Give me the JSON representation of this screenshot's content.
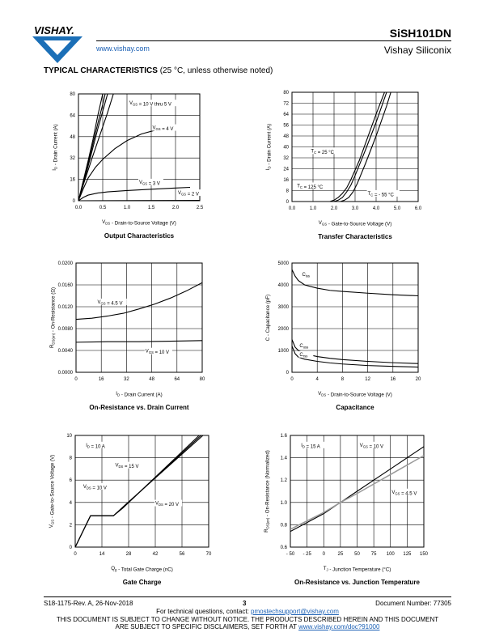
{
  "header": {
    "logo_text": "VISHAY.",
    "url": "www.vishay.com",
    "part_number": "SiSH101DN",
    "company": "Vishay Siliconix"
  },
  "section": {
    "title": "TYPICAL CHARACTERISTICS",
    "subtitle": " (25 °C, unless otherwise noted)"
  },
  "footer": {
    "revision": "S18-1175-Rev. A, 26-Nov-2018",
    "page": "3",
    "doc_number": "Document Number: 77305",
    "questions_prefix": "For technical questions, contact: ",
    "questions_email": "pmostechsupport@vishay.com",
    "disclaimer_line1": "THIS DOCUMENT IS SUBJECT TO CHANGE WITHOUT NOTICE. THE PRODUCTS DESCRIBED HEREIN AND THIS DOCUMENT",
    "disclaimer_line2_prefix": "ARE SUBJECT TO SPECIFIC DISCLAIMERS, SET FORTH AT ",
    "disclaimer_url": "www.vishay.com/doc?91000"
  },
  "chart_data": [
    {
      "type": "line",
      "title": "Output Characteristics",
      "xlabel": "V_DS - Drain-to-Source Voltage (V)",
      "ylabel": "I_D - Drain Current (A)",
      "xlim": [
        0,
        2.5
      ],
      "ylim": [
        0,
        80
      ],
      "xticks": [
        "0.0",
        "0.5",
        "1.0",
        "1.5",
        "2.0",
        "2.5"
      ],
      "yticks": [
        "0",
        "16",
        "32",
        "48",
        "64",
        "80"
      ],
      "grid": true,
      "series": [
        {
          "name": "V_GS = 10 V thru 5 V",
          "x": [
            0,
            0.1,
            0.2,
            0.3,
            0.4,
            0.5
          ],
          "y": [
            0,
            15,
            30,
            46,
            64,
            80
          ]
        },
        {
          "name": "",
          "x": [
            0,
            0.1,
            0.2,
            0.3,
            0.4,
            0.5,
            0.55
          ],
          "y": [
            0,
            14,
            28,
            43,
            58,
            72,
            80
          ]
        },
        {
          "name": "",
          "x": [
            0,
            0.1,
            0.2,
            0.3,
            0.4,
            0.5,
            0.6
          ],
          "y": [
            0,
            13,
            26,
            40,
            54,
            67,
            80
          ]
        },
        {
          "name": "",
          "x": [
            0,
            0.1,
            0.2,
            0.3,
            0.45,
            0.6,
            0.72
          ],
          "y": [
            0,
            12,
            23,
            34,
            50,
            66,
            80
          ]
        },
        {
          "name": "V_GS = 4 V",
          "x": [
            0,
            0.1,
            0.2,
            0.35,
            0.5,
            0.75,
            1.0,
            1.3,
            1.6,
            1.8
          ],
          "y": [
            0,
            9,
            17,
            25,
            31,
            39,
            45,
            50,
            53,
            55
          ]
        },
        {
          "name": "V_GS = 3 V",
          "x": [
            0,
            0.1,
            0.2,
            0.4,
            0.6,
            1.0,
            1.5,
            2.0,
            2.3
          ],
          "y": [
            0,
            2.5,
            4.2,
            5.8,
            6.6,
            7.6,
            8.6,
            9.5,
            10
          ]
        },
        {
          "name": "V_GS = 2 V",
          "x": [
            0,
            2.5
          ],
          "y": [
            0,
            0.3
          ]
        }
      ]
    },
    {
      "type": "line",
      "title": "Transfer Characteristics",
      "xlabel": "V_GS - Gate-to-Source Voltage (V)",
      "ylabel": "I_D - Drain Current (A)",
      "xlim": [
        0,
        6
      ],
      "ylim": [
        0,
        80
      ],
      "xticks": [
        "0.0",
        "1.0",
        "2.0",
        "3.0",
        "4.0",
        "5.0",
        "6.0"
      ],
      "yticks": [
        "0",
        "8",
        "16",
        "24",
        "32",
        "40",
        "48",
        "56",
        "64",
        "72",
        "80"
      ],
      "grid": true,
      "series": [
        {
          "name": "T_C = 25 °C",
          "x": [
            2.0,
            2.2,
            2.4,
            2.6,
            2.8,
            3.0,
            3.5,
            4.0,
            4.5
          ],
          "y": [
            0,
            1,
            3,
            7,
            12,
            19,
            38,
            58,
            80
          ]
        },
        {
          "name": "T_C = 125 °C",
          "x": [
            1.8,
            2.0,
            2.2,
            2.4,
            2.6,
            2.8,
            3.2,
            3.6,
            4.0,
            4.4
          ],
          "y": [
            0,
            1,
            3,
            6,
            10,
            16,
            30,
            47,
            64,
            80
          ]
        },
        {
          "name": "T_C = - 55 °C",
          "x": [
            2.3,
            2.5,
            2.7,
            2.9,
            3.1,
            3.5,
            4.0,
            4.5,
            4.7
          ],
          "y": [
            0,
            1,
            3,
            7,
            13,
            28,
            48,
            70,
            80
          ]
        }
      ]
    },
    {
      "type": "line",
      "title": "On-Resistance vs. Drain Current",
      "xlabel": "I_D - Drain Current (A)",
      "ylabel": "R_DS(on) - On-Resistance (Ω)",
      "xlim": [
        0,
        80
      ],
      "ylim": [
        0,
        0.02
      ],
      "xticks": [
        "0",
        "16",
        "32",
        "48",
        "64",
        "80"
      ],
      "yticks": [
        "0.0000",
        "0.0040",
        "0.0080",
        "0.0120",
        "0.0160",
        "0.0200"
      ],
      "grid": true,
      "series": [
        {
          "name": "V_GS = 4.5 V",
          "x": [
            0,
            10,
            20,
            30,
            40,
            50,
            60,
            70,
            80
          ],
          "y": [
            0.0097,
            0.0099,
            0.0103,
            0.0108,
            0.0116,
            0.0125,
            0.0136,
            0.0149,
            0.0164
          ]
        },
        {
          "name": "V_GS = 10 V",
          "x": [
            0,
            20,
            40,
            60,
            80
          ],
          "y": [
            0.0055,
            0.0056,
            0.0056,
            0.0057,
            0.0058
          ]
        }
      ]
    },
    {
      "type": "line",
      "title": "Capacitance",
      "xlabel": "V_DS - Drain-to-Source Voltage (V)",
      "ylabel": "C - Capacitance (pF)",
      "xlim": [
        0,
        20
      ],
      "ylim": [
        0,
        5000
      ],
      "xticks": [
        "0",
        "4",
        "8",
        "12",
        "16",
        "20"
      ],
      "yticks": [
        "0",
        "1000",
        "2000",
        "3000",
        "4000",
        "5000"
      ],
      "grid": true,
      "series": [
        {
          "name": "C_iss",
          "x": [
            0,
            0.5,
            1,
            2,
            4,
            6,
            8,
            12,
            16,
            20
          ],
          "y": [
            4700,
            4400,
            4200,
            4000,
            3850,
            3750,
            3700,
            3620,
            3550,
            3500
          ]
        },
        {
          "name": "C_oss",
          "x": [
            0,
            0.5,
            1,
            2,
            4,
            6,
            8,
            12,
            16,
            20
          ],
          "y": [
            1500,
            1150,
            1000,
            850,
            720,
            640,
            580,
            500,
            440,
            400
          ]
        },
        {
          "name": "C_rss",
          "x": [
            0,
            0.5,
            1,
            2,
            4,
            6,
            8,
            12,
            16,
            20
          ],
          "y": [
            1200,
            850,
            700,
            600,
            500,
            430,
            380,
            310,
            270,
            240
          ]
        }
      ]
    },
    {
      "type": "line",
      "title": "Gate Charge",
      "xlabel": "Q_g - Total Gate Charge (nC)",
      "ylabel": "V_GS - Gate-to-Source Voltage (V)",
      "xlim": [
        0,
        70
      ],
      "ylim": [
        0,
        10
      ],
      "xticks": [
        "0",
        "14",
        "28",
        "42",
        "56",
        "70"
      ],
      "yticks": [
        "0",
        "2",
        "4",
        "6",
        "8",
        "10"
      ],
      "grid": true,
      "annotation": "I_D = 10 A",
      "series": [
        {
          "name": "V_DS = 10 V",
          "x": [
            0,
            8,
            20,
            25,
            65
          ],
          "y": [
            0,
            2.8,
            2.8,
            3.5,
            10
          ]
        },
        {
          "name": "V_DS = 15 V",
          "x": [
            0,
            8,
            20,
            26,
            66
          ],
          "y": [
            0,
            2.8,
            2.8,
            3.7,
            10
          ]
        },
        {
          "name": "V_DS = 20 V",
          "x": [
            0,
            8,
            20,
            27,
            67
          ],
          "y": [
            0,
            2.8,
            2.8,
            3.9,
            10
          ]
        }
      ]
    },
    {
      "type": "line",
      "title": "On-Resistance vs. Junction Temperature",
      "xlabel": "T_J - Junction Temperature (°C)",
      "ylabel": "R_DS(on) - On-Resistance (Normalized)",
      "xlim": [
        -50,
        150
      ],
      "ylim": [
        0.6,
        1.6
      ],
      "xticks": [
        "- 50",
        "- 25",
        "0",
        "25",
        "50",
        "75",
        "100",
        "125",
        "150"
      ],
      "yticks": [
        "0.6",
        "0.8",
        "1.0",
        "1.2",
        "1.4",
        "1.6"
      ],
      "grid": true,
      "annotation": "I_D = 15 A",
      "series": [
        {
          "name": "V_GS = 10 V",
          "x": [
            -50,
            0,
            25,
            50,
            100,
            150
          ],
          "y": [
            0.74,
            0.9,
            1.0,
            1.1,
            1.3,
            1.5
          ]
        },
        {
          "name": "V_GS = 4.5 V",
          "x": [
            -50,
            0,
            25,
            50,
            100,
            150
          ],
          "y": [
            0.76,
            0.91,
            1.0,
            1.08,
            1.25,
            1.42
          ]
        }
      ]
    }
  ]
}
